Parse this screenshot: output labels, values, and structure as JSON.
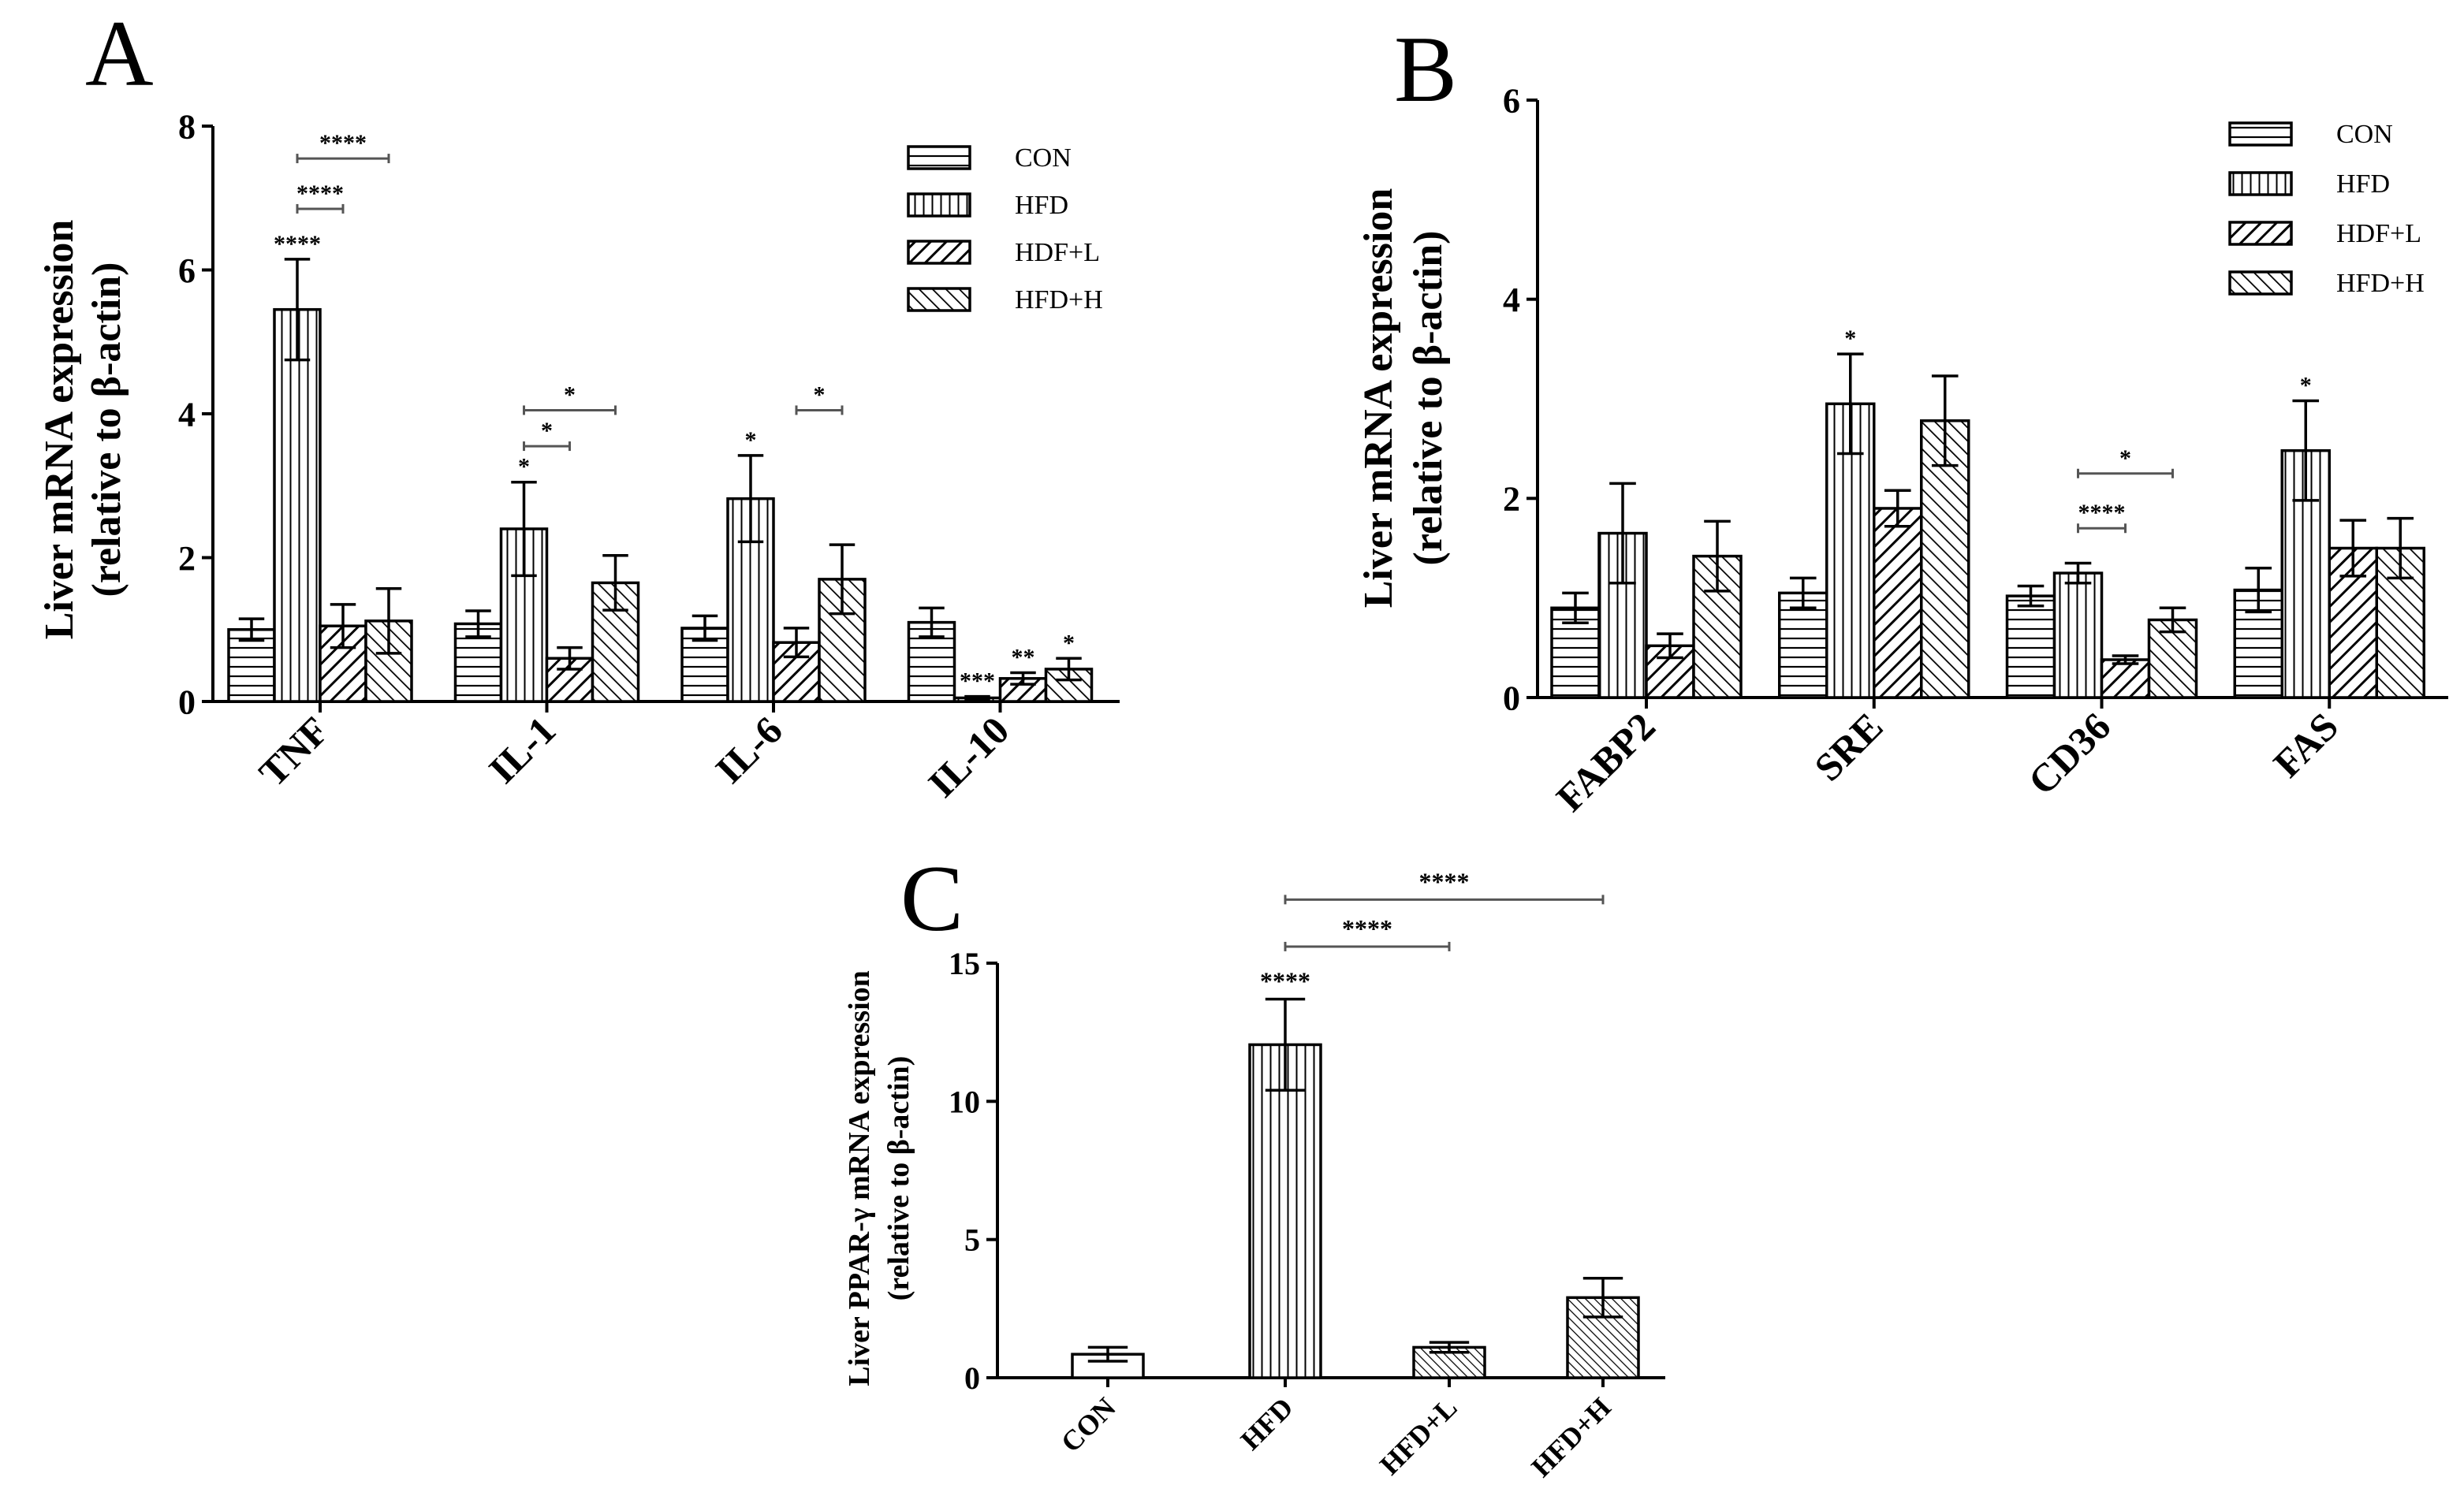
{
  "colors": {
    "ink": "#000000",
    "fill": "#ffffff",
    "sig": "#555555"
  },
  "chart_data": [
    {
      "panel": "A",
      "type": "bar",
      "ylabel_line1": "Liver mRNA expression",
      "ylabel_line2": "(relative to β-actin)",
      "ylim": [
        0,
        8
      ],
      "yticks": [
        0,
        2,
        4,
        6,
        8
      ],
      "categories": [
        "TNF",
        "IL-1",
        "IL-6",
        "IL-10"
      ],
      "series": [
        {
          "name": "CON",
          "pattern": "hlines",
          "values": [
            1.0,
            1.08,
            1.02,
            1.1
          ],
          "errors": [
            0.15,
            0.18,
            0.17,
            0.2
          ]
        },
        {
          "name": "HFD",
          "pattern": "vlines",
          "values": [
            5.45,
            2.4,
            2.82,
            0.05
          ],
          "errors": [
            0.7,
            0.65,
            0.6,
            0.02
          ]
        },
        {
          "name": "HDF+L",
          "pattern": "diag",
          "values": [
            1.05,
            0.6,
            0.82,
            0.32
          ],
          "errors": [
            0.3,
            0.15,
            0.2,
            0.08
          ]
        },
        {
          "name": "HFD+H",
          "pattern": "adiag",
          "values": [
            1.12,
            1.65,
            1.7,
            0.45
          ],
          "errors": [
            0.45,
            0.38,
            0.48,
            0.15
          ]
        }
      ],
      "bar_stars": [
        {
          "category": 0,
          "series": 1,
          "text": "****"
        },
        {
          "category": 1,
          "series": 1,
          "text": "*"
        },
        {
          "category": 2,
          "series": 1,
          "text": "*"
        },
        {
          "category": 3,
          "series": 1,
          "text": "***"
        },
        {
          "category": 3,
          "series": 2,
          "text": "**"
        },
        {
          "category": 3,
          "series": 3,
          "text": "*"
        }
      ],
      "brackets": [
        {
          "category": 0,
          "from": 1,
          "to": 3,
          "y": 7.55,
          "text": "****"
        },
        {
          "category": 0,
          "from": 1,
          "to": 2,
          "y": 6.85,
          "text": "****"
        },
        {
          "category": 1,
          "from": 1,
          "to": 3,
          "y": 4.05,
          "text": "*"
        },
        {
          "category": 1,
          "from": 1,
          "to": 2,
          "y": 3.55,
          "text": "*"
        },
        {
          "category": 2,
          "from": 2,
          "to": 3,
          "y": 4.05,
          "text": "*"
        }
      ]
    },
    {
      "panel": "B",
      "type": "bar",
      "ylabel_line1": "Liver mRNA expression",
      "ylabel_line2": "(relative to β-actin)",
      "ylim": [
        0,
        6
      ],
      "yticks": [
        0,
        2,
        4,
        6
      ],
      "categories": [
        "FABP2",
        "SRE",
        "CD36",
        "FAS"
      ],
      "series": [
        {
          "name": "CON",
          "pattern": "hlines",
          "values": [
            0.9,
            1.05,
            1.02,
            1.08
          ],
          "errors": [
            0.15,
            0.15,
            0.1,
            0.22
          ]
        },
        {
          "name": "HFD",
          "pattern": "vlines",
          "values": [
            1.65,
            2.95,
            1.25,
            2.48
          ],
          "errors": [
            0.5,
            0.5,
            0.1,
            0.5
          ]
        },
        {
          "name": "HDF+L",
          "pattern": "diag",
          "values": [
            0.52,
            1.9,
            0.38,
            1.5
          ],
          "errors": [
            0.12,
            0.18,
            0.04,
            0.28
          ]
        },
        {
          "name": "HFD+H",
          "pattern": "adiag",
          "values": [
            1.42,
            2.78,
            0.78,
            1.5
          ],
          "errors": [
            0.35,
            0.45,
            0.12,
            0.3
          ]
        }
      ],
      "bar_stars": [
        {
          "category": 1,
          "series": 1,
          "text": "*"
        },
        {
          "category": 3,
          "series": 1,
          "text": "*"
        }
      ],
      "brackets": [
        {
          "category": 2,
          "from": 1,
          "to": 3,
          "y": 2.25,
          "text": "*"
        },
        {
          "category": 2,
          "from": 1,
          "to": 2,
          "y": 1.7,
          "text": "****"
        }
      ]
    },
    {
      "panel": "C",
      "type": "bar",
      "ylabel_line1": "Liver PPAR-γ mRNA expression",
      "ylabel_line2": "(relative to β-actin)",
      "ylim": [
        0,
        15
      ],
      "yticks": [
        0,
        5,
        10,
        15
      ],
      "categories": [
        "CON",
        "HFD",
        "HFD+L",
        "HFD+H"
      ],
      "patterns": [
        "plain",
        "vlines",
        "dense",
        "dense"
      ],
      "values": [
        0.85,
        12.05,
        1.1,
        2.9
      ],
      "errors": [
        0.25,
        1.65,
        0.18,
        0.7
      ],
      "bar_stars": [
        {
          "index": 1,
          "text": "****"
        }
      ],
      "brackets": [
        {
          "from": 1,
          "to": 3,
          "y": 17.3,
          "text": "****"
        },
        {
          "from": 1,
          "to": 2,
          "y": 15.6,
          "text": "****"
        }
      ]
    }
  ]
}
